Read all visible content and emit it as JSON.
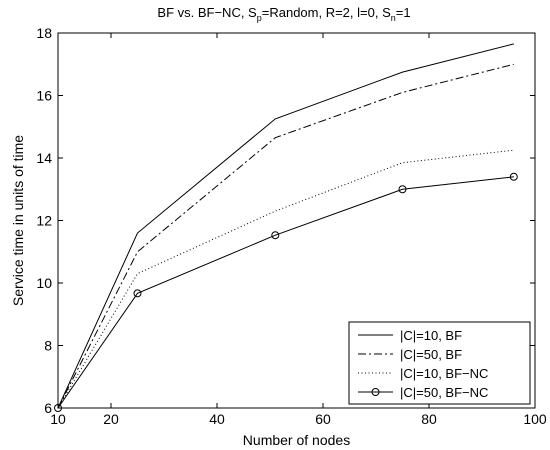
{
  "chart_data": {
    "type": "line",
    "title_parts": [
      "BF vs. BF−NC, S",
      "p",
      "=Random, R=2, l=0, S",
      "n",
      "=1"
    ],
    "xlabel": "Number of nodes",
    "ylabel": "Service time in units of time",
    "xlim": [
      10,
      100
    ],
    "ylim": [
      6,
      18
    ],
    "xticks": [
      10,
      20,
      40,
      60,
      80,
      100
    ],
    "yticks": [
      6,
      8,
      10,
      12,
      14,
      16,
      18
    ],
    "grid": false,
    "legend_position": "bottom-right",
    "series": [
      {
        "name": "|C|=10, BF",
        "style": "solid",
        "marker": "none",
        "x": [
          10,
          25,
          51,
          75,
          96
        ],
        "y": [
          6.0,
          11.6,
          15.25,
          16.75,
          17.65
        ]
      },
      {
        "name": "|C|=50, BF",
        "style": "dashdot",
        "marker": "none",
        "x": [
          10,
          25,
          51,
          75,
          96
        ],
        "y": [
          6.0,
          11.0,
          14.65,
          16.1,
          17.0
        ]
      },
      {
        "name": "|C|=10, BF−NC",
        "style": "dotted",
        "marker": "none",
        "x": [
          10,
          25,
          51,
          75,
          96
        ],
        "y": [
          6.0,
          10.3,
          12.3,
          13.85,
          14.25
        ]
      },
      {
        "name": "|C|=50, BF−NC",
        "style": "solid",
        "marker": "circle",
        "x": [
          10,
          25,
          51,
          75,
          96
        ],
        "y": [
          6.0,
          9.67,
          11.53,
          13.0,
          13.4
        ]
      }
    ]
  }
}
